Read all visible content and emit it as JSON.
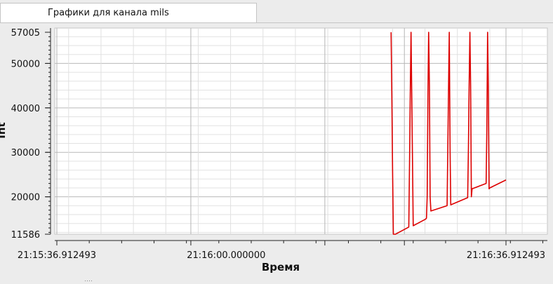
{
  "tab": {
    "label": "Графики для канала mils"
  },
  "chart_data": {
    "type": "line",
    "xlabel": "Время",
    "ylabel": "Int",
    "x_ticks": [
      "21:15:36.912493",
      "21:16:00.000000",
      "21:16:36.912493"
    ],
    "y_ticks": [
      "11586",
      "20000",
      "30000",
      "40000",
      "50000",
      "57005"
    ],
    "ylim": [
      11586,
      57005
    ],
    "grid": true,
    "series": [
      {
        "color": "#dd0000",
        "x_seconds_from_start": [
          45.4,
          45.5,
          45.6,
          45.7,
          45.9,
          46.0,
          47.8,
          47.9,
          48.0,
          48.1,
          48.2,
          48.3,
          48.4,
          50.1,
          50.2,
          50.3,
          50.4,
          50.5,
          50.6,
          50.7,
          50.8,
          53.0,
          53.1,
          53.2,
          53.3,
          53.4,
          53.5,
          55.8,
          55.9,
          56.0,
          56.1,
          56.2,
          56.3,
          56.4,
          58.3,
          58.4,
          58.5,
          58.6,
          58.7,
          58.8,
          61.0
        ],
        "y": [
          57005,
          42000,
          26000,
          11586,
          11586,
          11600,
          13200,
          28000,
          43000,
          57005,
          43000,
          28000,
          13500,
          15000,
          15200,
          20000,
          43000,
          57005,
          45000,
          20000,
          16800,
          18000,
          31000,
          45000,
          57005,
          31000,
          18200,
          19800,
          31000,
          45000,
          57005,
          45000,
          20000,
          21800,
          23000,
          35000,
          57005,
          45000,
          21800,
          22000,
          23800
        ]
      }
    ]
  },
  "page": {}
}
